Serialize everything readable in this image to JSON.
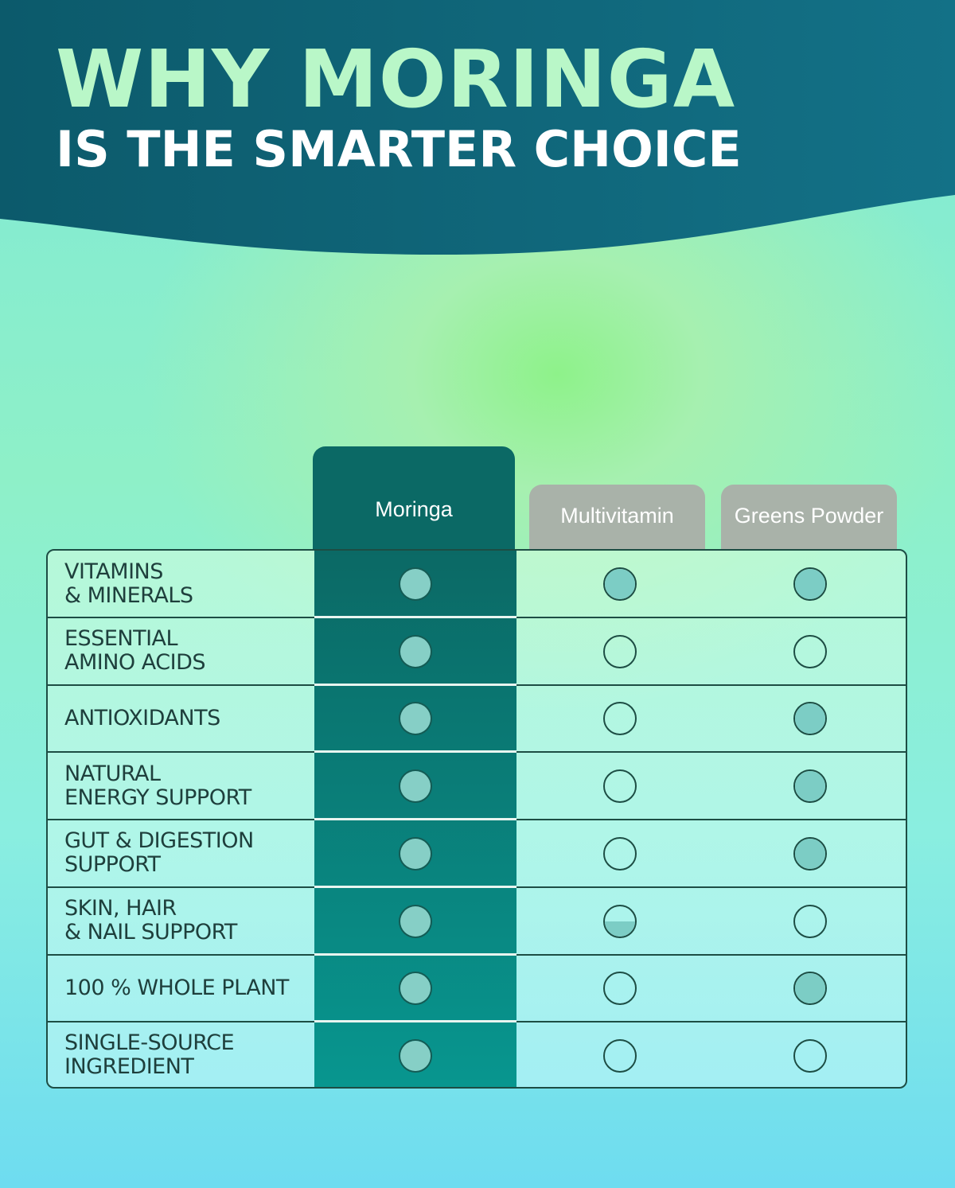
{
  "title": {
    "line1": "WHY MORINGA",
    "line2": "IS THE SMARTER CHOICE"
  },
  "colors": {
    "header": "#0e5f73",
    "title_accent": "#b9f7c8",
    "moringa_column": "#0b6965",
    "other_tabs": "#a9b2a9",
    "dot_fill": "#7ccdc5"
  },
  "columns": [
    "Moringa",
    "Multivitamin",
    "Greens Powder"
  ],
  "rows": [
    {
      "label": "VITAMINS\n& MINERALS",
      "levels": [
        1,
        1,
        1
      ]
    },
    {
      "label": "ESSENTIAL\nAMINO ACIDS",
      "levels": [
        1,
        0,
        0
      ]
    },
    {
      "label": "ANTIOXIDANTS",
      "levels": [
        1,
        0,
        1
      ]
    },
    {
      "label": "NATURAL\nENERGY SUPPORT",
      "levels": [
        1,
        0,
        1
      ]
    },
    {
      "label": "GUT & DIGESTION\nSUPPORT",
      "levels": [
        1,
        0,
        1
      ]
    },
    {
      "label": "SKIN, HAIR\n& NAIL SUPPORT",
      "levels": [
        1,
        0.5,
        0
      ]
    },
    {
      "label": "100 % WHOLE PLANT",
      "levels": [
        1,
        0,
        1
      ]
    },
    {
      "label": "SINGLE-SOURCE\nINGREDIENT",
      "levels": [
        1,
        0,
        0
      ]
    }
  ]
}
